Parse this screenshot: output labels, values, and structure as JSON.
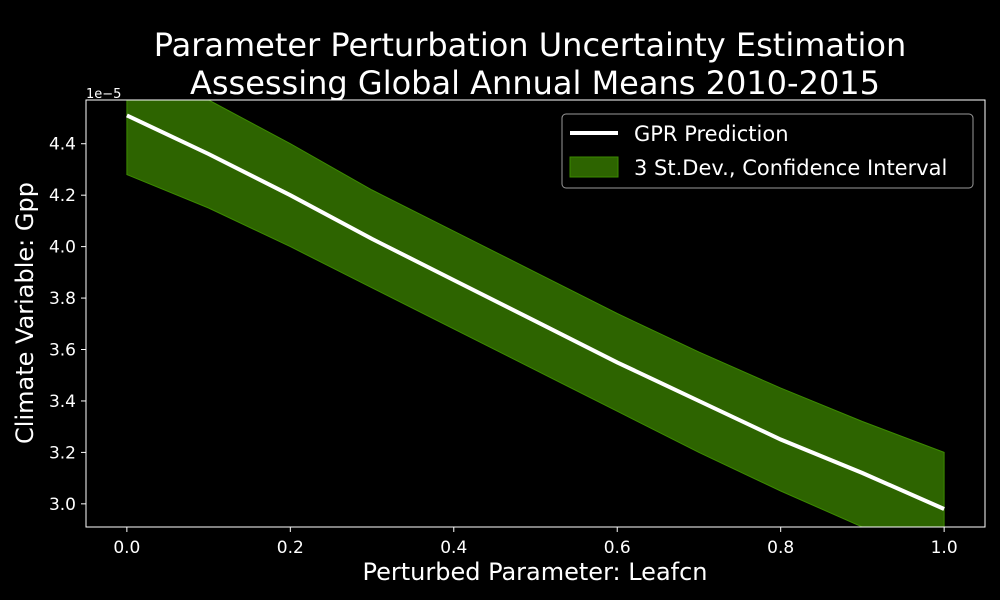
{
  "chart_data": {
    "type": "line",
    "title_line1": "Parameter Perturbation Uncertainty Estimation",
    "title_line2": "Assessing Global Annual Means 2010-2015",
    "xlabel": "Perturbed Parameter: Leafcn",
    "ylabel": "Climate Variable: Gpp",
    "y_offset_label": "1e−5",
    "xlim": [
      -0.05,
      1.05
    ],
    "ylim": [
      2.91,
      4.57
    ],
    "xticks": [
      0.0,
      0.2,
      0.4,
      0.6,
      0.8,
      1.0
    ],
    "xtick_labels": [
      "0.0",
      "0.2",
      "0.4",
      "0.6",
      "0.8",
      "1.0"
    ],
    "yticks": [
      3.0,
      3.2,
      3.4,
      3.6,
      3.8,
      4.0,
      4.2,
      4.4
    ],
    "ytick_labels": [
      "3.0",
      "3.2",
      "3.4",
      "3.6",
      "3.8",
      "4.0",
      "4.2",
      "4.4"
    ],
    "grid": false,
    "legend_position": "top-right",
    "colors": {
      "background": "#000000",
      "line": "#ffffff",
      "band_fill": "#2d6400",
      "band_edge": "#3c8a00",
      "axis": "#ffffff"
    },
    "series": [
      {
        "name": "GPR Prediction",
        "x": [
          0.0,
          0.1,
          0.2,
          0.3,
          0.4,
          0.5,
          0.6,
          0.7,
          0.8,
          0.9,
          1.0
        ],
        "y": [
          4.51,
          4.36,
          4.2,
          4.03,
          3.87,
          3.71,
          3.55,
          3.4,
          3.25,
          3.12,
          2.98
        ]
      }
    ],
    "band": {
      "name": "3 St.Dev., Confidence Interval",
      "x": [
        0.0,
        0.1,
        0.2,
        0.3,
        0.4,
        0.5,
        0.6,
        0.7,
        0.8,
        0.9,
        1.0
      ],
      "lower": [
        4.28,
        4.15,
        4.0,
        3.84,
        3.68,
        3.52,
        3.36,
        3.2,
        3.05,
        2.91,
        2.77
      ],
      "upper": [
        4.74,
        4.57,
        4.4,
        4.22,
        4.06,
        3.9,
        3.74,
        3.59,
        3.45,
        3.32,
        3.2
      ]
    }
  }
}
